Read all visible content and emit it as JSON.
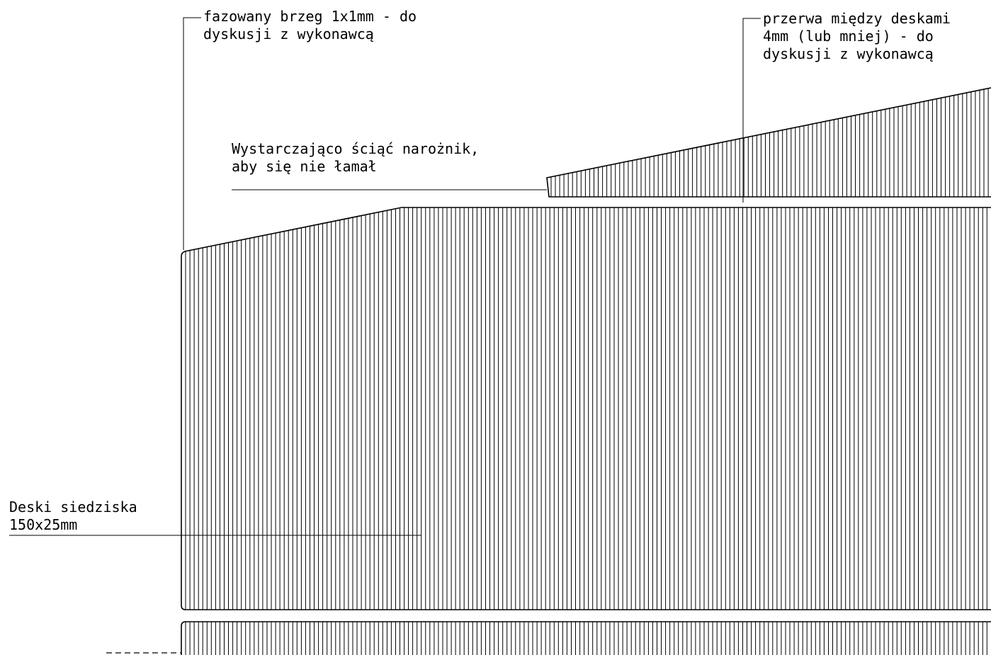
{
  "annotations": {
    "chamfer": {
      "line1": "fazowany brzeg 1x1mm - do",
      "line2": "dyskusji z wykonawcą"
    },
    "gap": {
      "line1": "przerwa między deskami",
      "line2": "4mm (lub mniej) - do",
      "line3": "dyskusji z wykonawcą"
    },
    "corner_cut": {
      "line1": "Wystarczająco ściąć narożnik,",
      "line2": "aby się nie łamał"
    },
    "seat_boards": {
      "line1": "Deski siedziska",
      "line2": "150x25mm"
    }
  },
  "colors": {
    "line": "#000000",
    "background": "#ffffff"
  }
}
